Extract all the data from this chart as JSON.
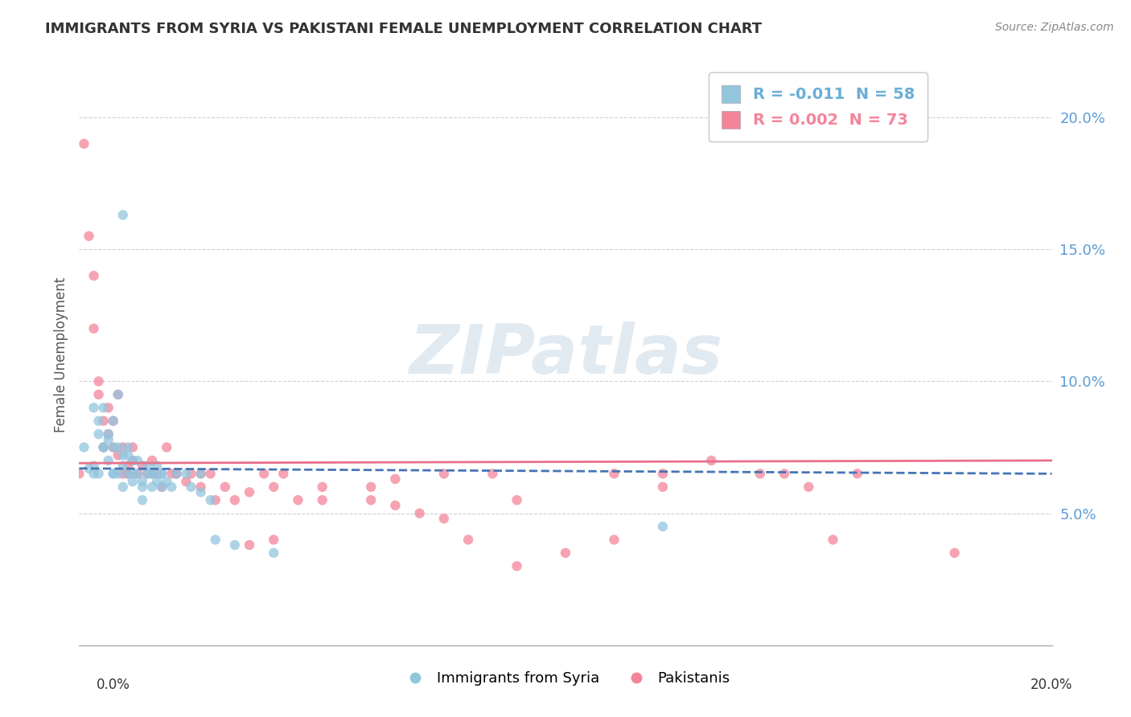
{
  "title": "IMMIGRANTS FROM SYRIA VS PAKISTANI FEMALE UNEMPLOYMENT CORRELATION CHART",
  "source": "Source: ZipAtlas.com",
  "ylabel": "Female Unemployment",
  "watermark": "ZIPatlas",
  "legend_entries": [
    {
      "label": "R = -0.011  N = 58",
      "color": "#6baed6"
    },
    {
      "label": "R = 0.002  N = 73",
      "color": "#f4849a"
    }
  ],
  "legend_labels_bottom": [
    "Immigrants from Syria",
    "Pakistanis"
  ],
  "xlim": [
    0.0,
    0.2
  ],
  "ylim": [
    0.0,
    0.22
  ],
  "yticks": [
    0.05,
    0.1,
    0.15,
    0.2
  ],
  "ytick_labels": [
    "5.0%",
    "10.0%",
    "15.0%",
    "20.0%"
  ],
  "background_color": "#ffffff",
  "grid_color": "#cccccc",
  "syria_color": "#92c5de",
  "pakistan_color": "#f4849a",
  "syria_line_color": "#4575b4",
  "pakistan_line_color": "#e8708a",
  "syria_trend_y0": 0.067,
  "syria_trend_y1": 0.065,
  "pakistan_trend_y0": 0.069,
  "pakistan_trend_y1": 0.07,
  "syria_points_x": [
    0.005,
    0.009,
    0.004,
    0.004,
    0.005,
    0.006,
    0.007,
    0.006,
    0.007,
    0.008,
    0.008,
    0.009,
    0.009,
    0.01,
    0.01,
    0.011,
    0.011,
    0.012,
    0.013,
    0.013,
    0.014,
    0.015,
    0.015,
    0.016,
    0.017,
    0.018,
    0.019,
    0.02,
    0.022,
    0.023,
    0.025,
    0.027,
    0.001,
    0.002,
    0.003,
    0.003,
    0.003,
    0.004,
    0.005,
    0.006,
    0.007,
    0.007,
    0.008,
    0.009,
    0.01,
    0.011,
    0.012,
    0.013,
    0.014,
    0.015,
    0.016,
    0.017,
    0.017,
    0.025,
    0.028,
    0.032,
    0.04,
    0.12
  ],
  "syria_points_y": [
    0.09,
    0.163,
    0.08,
    0.065,
    0.075,
    0.08,
    0.065,
    0.07,
    0.085,
    0.075,
    0.065,
    0.068,
    0.06,
    0.072,
    0.065,
    0.07,
    0.062,
    0.065,
    0.055,
    0.062,
    0.068,
    0.065,
    0.06,
    0.068,
    0.065,
    0.062,
    0.06,
    0.065,
    0.065,
    0.06,
    0.058,
    0.055,
    0.075,
    0.067,
    0.09,
    0.065,
    0.068,
    0.085,
    0.075,
    0.078,
    0.065,
    0.075,
    0.095,
    0.072,
    0.075,
    0.065,
    0.07,
    0.06,
    0.065,
    0.065,
    0.062,
    0.065,
    0.06,
    0.065,
    0.04,
    0.038,
    0.035,
    0.045
  ],
  "pakistan_points_x": [
    0.0,
    0.001,
    0.002,
    0.003,
    0.003,
    0.004,
    0.004,
    0.005,
    0.005,
    0.006,
    0.006,
    0.007,
    0.007,
    0.008,
    0.008,
    0.009,
    0.009,
    0.01,
    0.01,
    0.011,
    0.011,
    0.012,
    0.013,
    0.014,
    0.015,
    0.016,
    0.017,
    0.018,
    0.019,
    0.02,
    0.022,
    0.023,
    0.025,
    0.027,
    0.028,
    0.03,
    0.032,
    0.035,
    0.038,
    0.04,
    0.042,
    0.045,
    0.05,
    0.06,
    0.065,
    0.07,
    0.075,
    0.08,
    0.09,
    0.1,
    0.11,
    0.12,
    0.13,
    0.14,
    0.15,
    0.16,
    0.18,
    0.155,
    0.145,
    0.12,
    0.11,
    0.09,
    0.085,
    0.075,
    0.065,
    0.06,
    0.05,
    0.04,
    0.035,
    0.025,
    0.02,
    0.015,
    0.01
  ],
  "pakistan_points_y": [
    0.065,
    0.19,
    0.155,
    0.14,
    0.12,
    0.1,
    0.095,
    0.085,
    0.075,
    0.09,
    0.08,
    0.085,
    0.075,
    0.095,
    0.072,
    0.075,
    0.065,
    0.068,
    0.065,
    0.075,
    0.07,
    0.065,
    0.068,
    0.065,
    0.07,
    0.065,
    0.06,
    0.075,
    0.065,
    0.065,
    0.062,
    0.065,
    0.06,
    0.065,
    0.055,
    0.06,
    0.055,
    0.058,
    0.065,
    0.06,
    0.065,
    0.055,
    0.055,
    0.055,
    0.053,
    0.05,
    0.048,
    0.04,
    0.03,
    0.035,
    0.04,
    0.06,
    0.07,
    0.065,
    0.06,
    0.065,
    0.035,
    0.04,
    0.065,
    0.065,
    0.065,
    0.055,
    0.065,
    0.065,
    0.063,
    0.06,
    0.06,
    0.04,
    0.038,
    0.065,
    0.065,
    0.065,
    0.065
  ]
}
